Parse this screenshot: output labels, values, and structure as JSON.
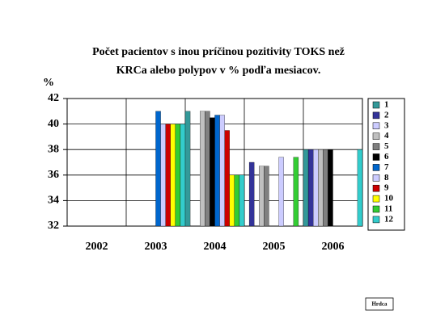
{
  "chart_data": {
    "type": "bar",
    "title": [
      "Počet pacientov s inou príčinou pozitivity TOKS než",
      "KRCa alebo polypov v % podľa mesiacov."
    ],
    "y_label": "%",
    "categories": [
      "2002",
      "2003",
      "2004",
      "2005",
      "2006"
    ],
    "ylim": [
      32,
      42
    ],
    "yticks": [
      32,
      34,
      36,
      38,
      40,
      42
    ],
    "grid": true,
    "legend": "right",
    "series": [
      {
        "name": "1",
        "color": "#339999",
        "values": [
          null,
          null,
          41,
          null,
          38
        ]
      },
      {
        "name": "2",
        "color": "#333399",
        "values": [
          null,
          null,
          null,
          37,
          38
        ]
      },
      {
        "name": "3",
        "color": "#ccccff",
        "values": [
          null,
          null,
          null,
          null,
          38
        ]
      },
      {
        "name": "4",
        "color": "#c0c0c0",
        "values": [
          null,
          null,
          41,
          36.7,
          38
        ]
      },
      {
        "name": "5",
        "color": "#808080",
        "values": [
          null,
          null,
          41,
          36.7,
          38
        ]
      },
      {
        "name": "6",
        "color": "#000000",
        "values": [
          null,
          null,
          40.5,
          null,
          38
        ]
      },
      {
        "name": "7",
        "color": "#0066cc",
        "values": [
          null,
          41,
          40.7,
          null,
          null
        ]
      },
      {
        "name": "8",
        "color": "#ccccff",
        "values": [
          null,
          40,
          40.7,
          37.4,
          null
        ]
      },
      {
        "name": "9",
        "color": "#cc0000",
        "values": [
          null,
          40,
          39.5,
          null,
          null
        ]
      },
      {
        "name": "10",
        "color": "#ffff00",
        "values": [
          null,
          40,
          36,
          null,
          null
        ]
      },
      {
        "name": "11",
        "color": "#33cc33",
        "values": [
          null,
          40,
          36,
          37.4,
          null
        ]
      },
      {
        "name": "12",
        "color": "#33cccc",
        "values": [
          null,
          40,
          36,
          null,
          38
        ]
      }
    ],
    "note": "Hrdca"
  }
}
